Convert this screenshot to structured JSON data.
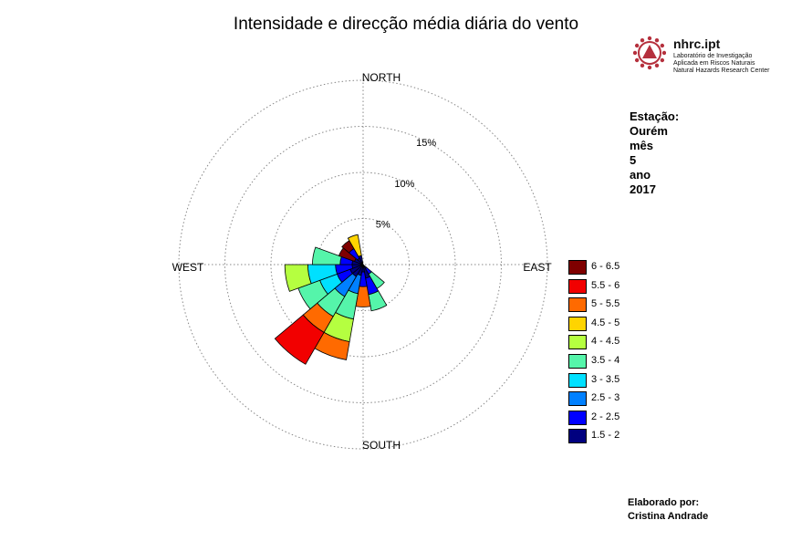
{
  "title": "Intensidade e direcção média diária do vento",
  "logo": {
    "name": "nhrc.ipt",
    "line1": "Laboratório de Investigação",
    "line2": "Aplicada em Riscos Naturais",
    "line3": "Natural Hazards Research Center",
    "colors": {
      "mark": "#b5303d",
      "ring": "#b5303d"
    },
    "icon": "triangle-gear-icon"
  },
  "station_info": {
    "station_label": "Estação:",
    "station_name": "Ourém",
    "month_label": "mês",
    "month": "5",
    "year_label": "ano",
    "year": "2017"
  },
  "credit": {
    "label": "Elaborado por:",
    "author": "Cristina Andrade"
  },
  "chart_data": {
    "type": "windrose",
    "direction_labels": {
      "north": "NORTH",
      "east": "EAST",
      "south": "SOUTH",
      "west": "WEST"
    },
    "ring_values": [
      5,
      10,
      15,
      20
    ],
    "ring_labels": [
      "5%",
      "10%",
      "15%"
    ],
    "max_value": 20,
    "grid": true,
    "sector_width_deg": 20,
    "bins": [
      {
        "label": "1.5 - 2",
        "color": "#00007f"
      },
      {
        "label": "2 - 2.5",
        "color": "#0000ff"
      },
      {
        "label": "2.5 - 3",
        "color": "#0080ff"
      },
      {
        "label": "3 - 3.5",
        "color": "#00e0ff"
      },
      {
        "label": "3.5 - 4",
        "color": "#55f5aa"
      },
      {
        "label": "4 - 4.5",
        "color": "#b5ff40"
      },
      {
        "label": "4.5 - 5",
        "color": "#ffd400"
      },
      {
        "label": "5 - 5.5",
        "color": "#ff6a00"
      },
      {
        "label": "5.5 - 6",
        "color": "#f20000"
      },
      {
        "label": "6 - 6.5",
        "color": "#7f0000"
      }
    ],
    "legend_order": [
      "6 - 6.5",
      "5.5 - 6",
      "5 - 5.5",
      "4.5 - 5",
      "4 - 4.5",
      "3.5 - 4",
      "3 - 3.5",
      "2.5 - 3",
      "2 - 2.5",
      "1.5 - 2"
    ],
    "sectors": [
      {
        "direction_deg": 160,
        "bands": [
          {
            "bin": "1.5 - 2",
            "to": 1.5
          },
          {
            "bin": "2 - 2.5",
            "to": 3.3
          },
          {
            "bin": "3.5 - 4",
            "to": 5.1
          }
        ]
      },
      {
        "direction_deg": 180,
        "bands": [
          {
            "bin": "1.5 - 2",
            "to": 0.8
          },
          {
            "bin": "2 - 2.5",
            "to": 2.4
          },
          {
            "bin": "5 - 5.5",
            "to": 4.6
          }
        ]
      },
      {
        "direction_deg": 200,
        "bands": [
          {
            "bin": "1.5 - 2",
            "to": 1.2
          },
          {
            "bin": "2.5 - 3",
            "to": 3.2
          },
          {
            "bin": "3.5 - 4",
            "to": 6.0
          },
          {
            "bin": "4 - 4.5",
            "to": 8.5
          },
          {
            "bin": "5 - 5.5",
            "to": 10.5
          }
        ]
      },
      {
        "direction_deg": 220,
        "bands": [
          {
            "bin": "1.5 - 2",
            "to": 1.5
          },
          {
            "bin": "2.5 - 3",
            "to": 4.0
          },
          {
            "bin": "3.5 - 4",
            "to": 6.5
          },
          {
            "bin": "5 - 5.5",
            "to": 8.5
          },
          {
            "bin": "5.5 - 6",
            "to": 12.5
          }
        ]
      },
      {
        "direction_deg": 240,
        "bands": [
          {
            "bin": "1.5 - 2",
            "to": 1.5
          },
          {
            "bin": "2 - 2.5",
            "to": 3.0
          },
          {
            "bin": "3 - 3.5",
            "to": 5.0
          },
          {
            "bin": "3.5 - 4",
            "to": 7.5
          }
        ]
      },
      {
        "direction_deg": 260,
        "bands": [
          {
            "bin": "1.5 - 2",
            "to": 1.2
          },
          {
            "bin": "2 - 2.5",
            "to": 3.0
          },
          {
            "bin": "3 - 3.5",
            "to": 6.0
          },
          {
            "bin": "4 - 4.5",
            "to": 8.5
          }
        ]
      },
      {
        "direction_deg": 280,
        "bands": [
          {
            "bin": "1.5 - 2",
            "to": 1.2
          },
          {
            "bin": "2 - 2.5",
            "to": 2.5
          },
          {
            "bin": "3.5 - 4",
            "to": 5.5
          }
        ]
      },
      {
        "direction_deg": 300,
        "bands": [
          {
            "bin": "1.5 - 2",
            "to": 1.0
          },
          {
            "bin": "6 - 6.5",
            "to": 2.8
          }
        ]
      },
      {
        "direction_deg": 320,
        "bands": [
          {
            "bin": "1.5 - 2",
            "to": 0.8
          },
          {
            "bin": "2 - 2.5",
            "to": 2.0
          },
          {
            "bin": "6 - 6.5",
            "to": 3.0
          }
        ]
      },
      {
        "direction_deg": 340,
        "bands": [
          {
            "bin": "1.5 - 2",
            "to": 1.0
          },
          {
            "bin": "4.5 - 5",
            "to": 3.3
          }
        ]
      },
      {
        "direction_deg": 140,
        "bands": [
          {
            "bin": "1.5 - 2",
            "to": 0.5
          },
          {
            "bin": "2 - 2.5",
            "to": 1.2
          },
          {
            "bin": "3.5 - 4",
            "to": 3.0
          }
        ]
      }
    ]
  }
}
